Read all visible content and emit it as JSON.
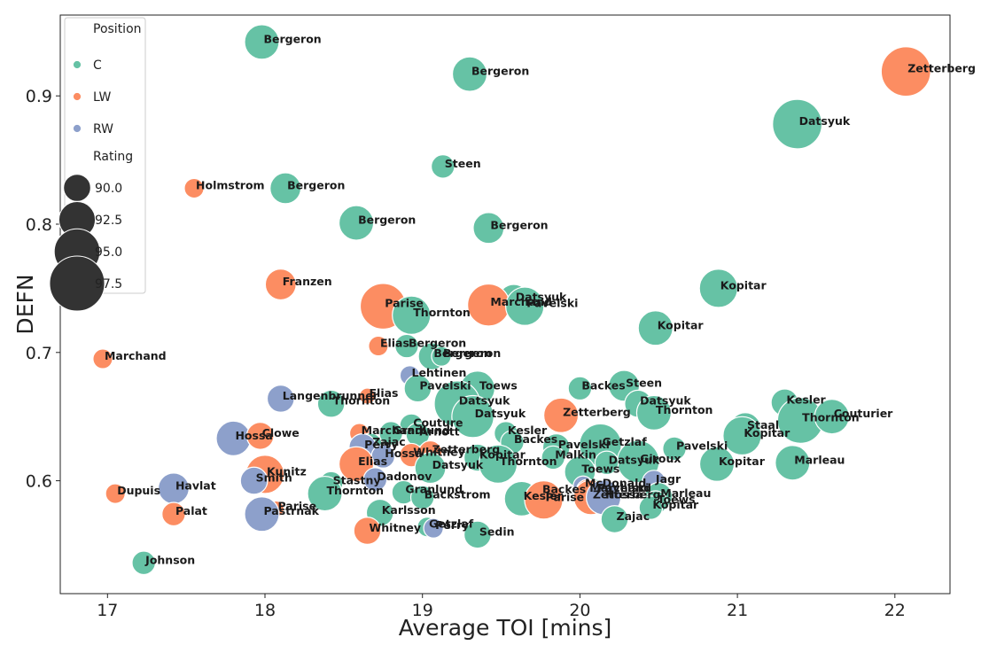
{
  "chart_data": {
    "type": "scatter",
    "xlabel": "Average TOI [mins]",
    "ylabel": "DEFN",
    "xlim": [
      16.7,
      22.35
    ],
    "ylim": [
      0.512,
      0.963
    ],
    "x_ticks": [
      17,
      18,
      19,
      20,
      21,
      22
    ],
    "y_ticks": [
      0.6,
      0.7,
      0.8,
      0.9
    ],
    "grid": false,
    "legend": {
      "placement": "top-left",
      "hue_title": "Position",
      "size_title": "Rating",
      "hue_entries": [
        {
          "label": "C",
          "color": "#66c2a5"
        },
        {
          "label": "LW",
          "color": "#fc8d62"
        },
        {
          "label": "RW",
          "color": "#8da0cb"
        }
      ],
      "size_entries": [
        {
          "label": "90.0",
          "value": 90.0
        },
        {
          "label": "92.5",
          "value": 92.5
        },
        {
          "label": "95.0",
          "value": 95.0
        },
        {
          "label": "97.5",
          "value": 97.5
        }
      ]
    },
    "colors": {
      "C": "#66c2a5",
      "LW": "#fc8d62",
      "RW": "#8da0cb"
    },
    "points": [
      {
        "name": "Bergeron",
        "pos": "C",
        "x": 17.98,
        "y": 0.942,
        "rating": 92.0
      },
      {
        "name": "Bergeron",
        "pos": "C",
        "x": 19.3,
        "y": 0.917,
        "rating": 92.0
      },
      {
        "name": "Zetterberg",
        "pos": "LW",
        "x": 22.07,
        "y": 0.919,
        "rating": 96.0
      },
      {
        "name": "Datsyuk",
        "pos": "C",
        "x": 21.38,
        "y": 0.878,
        "rating": 96.0
      },
      {
        "name": "Steen",
        "pos": "C",
        "x": 19.13,
        "y": 0.845,
        "rating": 89.0
      },
      {
        "name": "Holmstrom",
        "pos": "LW",
        "x": 17.55,
        "y": 0.828,
        "rating": 88.0
      },
      {
        "name": "Bergeron",
        "pos": "C",
        "x": 18.13,
        "y": 0.828,
        "rating": 91.0
      },
      {
        "name": "Bergeron",
        "pos": "C",
        "x": 18.58,
        "y": 0.801,
        "rating": 92.0
      },
      {
        "name": "Bergeron",
        "pos": "C",
        "x": 19.42,
        "y": 0.797,
        "rating": 91.0
      },
      {
        "name": "Franzen",
        "pos": "LW",
        "x": 18.1,
        "y": 0.753,
        "rating": 91.0
      },
      {
        "name": "Kopitar",
        "pos": "C",
        "x": 20.88,
        "y": 0.75,
        "rating": 93.0
      },
      {
        "name": "Datsyuk",
        "pos": "C",
        "x": 19.58,
        "y": 0.741,
        "rating": 91.0
      },
      {
        "name": "Marchand",
        "pos": "LW",
        "x": 19.42,
        "y": 0.737,
        "rating": 94.0
      },
      {
        "name": "Pavelski",
        "pos": "C",
        "x": 19.65,
        "y": 0.736,
        "rating": 93.0
      },
      {
        "name": "Parise",
        "pos": "LW",
        "x": 18.75,
        "y": 0.736,
        "rating": 95.0
      },
      {
        "name": "Thornton",
        "pos": "C",
        "x": 18.93,
        "y": 0.729,
        "rating": 93.0
      },
      {
        "name": "Kopitar",
        "pos": "C",
        "x": 20.48,
        "y": 0.719,
        "rating": 92.0
      },
      {
        "name": "Elias",
        "pos": "LW",
        "x": 18.72,
        "y": 0.705,
        "rating": 88.0
      },
      {
        "name": "Bergeron",
        "pos": "C",
        "x": 18.9,
        "y": 0.705,
        "rating": 89.0
      },
      {
        "name": "Bergeron",
        "pos": "C",
        "x": 19.06,
        "y": 0.697,
        "rating": 90.0
      },
      {
        "name": "Bergeron",
        "pos": "C",
        "x": 19.12,
        "y": 0.697,
        "rating": 88.0
      },
      {
        "name": "Marchand",
        "pos": "LW",
        "x": 16.97,
        "y": 0.695,
        "rating": 88.0
      },
      {
        "name": "Lehtinen",
        "pos": "RW",
        "x": 18.92,
        "y": 0.682,
        "rating": 88.0
      },
      {
        "name": "Pavelski",
        "pos": "C",
        "x": 18.97,
        "y": 0.672,
        "rating": 90.0
      },
      {
        "name": "Toews",
        "pos": "C",
        "x": 19.35,
        "y": 0.672,
        "rating": 92.0
      },
      {
        "name": "Backes",
        "pos": "C",
        "x": 20.0,
        "y": 0.672,
        "rating": 89.0
      },
      {
        "name": "Steen",
        "pos": "C",
        "x": 20.28,
        "y": 0.674,
        "rating": 91.0
      },
      {
        "name": "Elias",
        "pos": "LW",
        "x": 18.65,
        "y": 0.666,
        "rating": 87.0
      },
      {
        "name": "Langenbrunner",
        "pos": "RW",
        "x": 18.1,
        "y": 0.664,
        "rating": 90.0
      },
      {
        "name": "Thornton",
        "pos": "C",
        "x": 18.42,
        "y": 0.66,
        "rating": 90.0
      },
      {
        "name": "Datsyuk",
        "pos": "C",
        "x": 19.22,
        "y": 0.66,
        "rating": 95.0
      },
      {
        "name": "Datsyuk",
        "pos": "C",
        "x": 19.32,
        "y": 0.65,
        "rating": 94.0
      },
      {
        "name": "Zetterberg",
        "pos": "LW",
        "x": 19.88,
        "y": 0.651,
        "rating": 92.0
      },
      {
        "name": "Datsyuk",
        "pos": "C",
        "x": 20.37,
        "y": 0.66,
        "rating": 90.0
      },
      {
        "name": "Thornton",
        "pos": "C",
        "x": 20.47,
        "y": 0.653,
        "rating": 92.0
      },
      {
        "name": "Kesler",
        "pos": "C",
        "x": 21.3,
        "y": 0.661,
        "rating": 90.0
      },
      {
        "name": "Thornton",
        "pos": "C",
        "x": 21.4,
        "y": 0.647,
        "rating": 95.0
      },
      {
        "name": "Couturier",
        "pos": "C",
        "x": 21.6,
        "y": 0.65,
        "rating": 92.0
      },
      {
        "name": "Staal",
        "pos": "C",
        "x": 21.05,
        "y": 0.641,
        "rating": 91.0
      },
      {
        "name": "Kopitar",
        "pos": "C",
        "x": 21.03,
        "y": 0.635,
        "rating": 93.0
      },
      {
        "name": "Couture",
        "pos": "C",
        "x": 18.93,
        "y": 0.643,
        "rating": 89.0
      },
      {
        "name": "Granlund",
        "pos": "C",
        "x": 18.8,
        "y": 0.637,
        "rating": 89.0
      },
      {
        "name": "Arnott",
        "pos": "C",
        "x": 18.97,
        "y": 0.636,
        "rating": 89.0
      },
      {
        "name": "Marchand",
        "pos": "LW",
        "x": 18.6,
        "y": 0.637,
        "rating": 88.0
      },
      {
        "name": "Hossa",
        "pos": "RW",
        "x": 17.8,
        "y": 0.633,
        "rating": 92.0
      },
      {
        "name": "Clowe",
        "pos": "LW",
        "x": 17.97,
        "y": 0.635,
        "rating": 90.0
      },
      {
        "name": "Zajac",
        "pos": "C",
        "x": 18.67,
        "y": 0.628,
        "rating": 89.0
      },
      {
        "name": "Perry",
        "pos": "RW",
        "x": 18.62,
        "y": 0.626,
        "rating": 90.0
      },
      {
        "name": "Kesler",
        "pos": "C",
        "x": 19.53,
        "y": 0.637,
        "rating": 89.0
      },
      {
        "name": "Backes",
        "pos": "C",
        "x": 19.57,
        "y": 0.63,
        "rating": 89.0
      },
      {
        "name": "Pavelski",
        "pos": "C",
        "x": 19.85,
        "y": 0.626,
        "rating": 90.0
      },
      {
        "name": "Getzlaf",
        "pos": "C",
        "x": 20.13,
        "y": 0.628,
        "rating": 94.0
      },
      {
        "name": "Pavelski",
        "pos": "C",
        "x": 20.6,
        "y": 0.625,
        "rating": 89.0
      },
      {
        "name": "Hossa",
        "pos": "RW",
        "x": 18.75,
        "y": 0.619,
        "rating": 89.0
      },
      {
        "name": "Whitney",
        "pos": "LW",
        "x": 18.93,
        "y": 0.62,
        "rating": 89.0
      },
      {
        "name": "Zetterberg",
        "pos": "LW",
        "x": 19.05,
        "y": 0.622,
        "rating": 89.0
      },
      {
        "name": "Kopitar",
        "pos": "C",
        "x": 19.35,
        "y": 0.618,
        "rating": 90.0
      },
      {
        "name": "Thornton",
        "pos": "C",
        "x": 19.48,
        "y": 0.613,
        "rating": 93.0
      },
      {
        "name": "Malkin",
        "pos": "C",
        "x": 19.83,
        "y": 0.618,
        "rating": 89.0
      },
      {
        "name": "Elias",
        "pos": "LW",
        "x": 18.58,
        "y": 0.613,
        "rating": 92.0
      },
      {
        "name": "Datsyuk",
        "pos": "C",
        "x": 19.05,
        "y": 0.61,
        "rating": 91.0
      },
      {
        "name": "Giroux",
        "pos": "C",
        "x": 20.37,
        "y": 0.615,
        "rating": 94.0
      },
      {
        "name": "Datsyuk",
        "pos": "C",
        "x": 20.17,
        "y": 0.614,
        "rating": 89.0
      },
      {
        "name": "Toews",
        "pos": "C",
        "x": 20.0,
        "y": 0.607,
        "rating": 91.0
      },
      {
        "name": "Kopitar",
        "pos": "C",
        "x": 20.87,
        "y": 0.613,
        "rating": 92.0
      },
      {
        "name": "Marleau",
        "pos": "C",
        "x": 21.35,
        "y": 0.614,
        "rating": 92.0
      },
      {
        "name": "Kunitz",
        "pos": "LW",
        "x": 18.0,
        "y": 0.605,
        "rating": 93.0
      },
      {
        "name": "Smith",
        "pos": "RW",
        "x": 17.93,
        "y": 0.6,
        "rating": 90.0
      },
      {
        "name": "Dadonov",
        "pos": "RW",
        "x": 18.7,
        "y": 0.601,
        "rating": 89.0
      },
      {
        "name": "Stastny",
        "pos": "C",
        "x": 18.42,
        "y": 0.598,
        "rating": 89.0
      },
      {
        "name": "Thornton",
        "pos": "C",
        "x": 18.38,
        "y": 0.59,
        "rating": 92.0
      },
      {
        "name": "Dupuis",
        "pos": "LW",
        "x": 17.05,
        "y": 0.59,
        "rating": 88.0
      },
      {
        "name": "Havlat",
        "pos": "RW",
        "x": 17.42,
        "y": 0.594,
        "rating": 91.0
      },
      {
        "name": "Granlund",
        "pos": "C",
        "x": 18.88,
        "y": 0.591,
        "rating": 89.0
      },
      {
        "name": "Backstrom",
        "pos": "C",
        "x": 19.0,
        "y": 0.587,
        "rating": 89.0
      },
      {
        "name": "Kesler",
        "pos": "C",
        "x": 19.63,
        "y": 0.586,
        "rating": 92.0
      },
      {
        "name": "Backes",
        "pos": "C",
        "x": 19.75,
        "y": 0.591,
        "rating": 89.0
      },
      {
        "name": "Parise",
        "pos": "LW",
        "x": 19.77,
        "y": 0.585,
        "rating": 93.0
      },
      {
        "name": "McDonald",
        "pos": "RW",
        "x": 20.02,
        "y": 0.596,
        "rating": 88.0
      },
      {
        "name": "Marchand",
        "pos": "LW",
        "x": 20.05,
        "y": 0.592,
        "rating": 89.0
      },
      {
        "name": "Pavelski",
        "pos": "C",
        "x": 20.1,
        "y": 0.592,
        "rating": 89.0
      },
      {
        "name": "Zetterberg",
        "pos": "LW",
        "x": 20.07,
        "y": 0.587,
        "rating": 92.0
      },
      {
        "name": "Hossa",
        "pos": "RW",
        "x": 20.15,
        "y": 0.587,
        "rating": 92.0
      },
      {
        "name": "Jagr",
        "pos": "RW",
        "x": 20.47,
        "y": 0.599,
        "rating": 89.0
      },
      {
        "name": "Marleau",
        "pos": "C",
        "x": 20.5,
        "y": 0.588,
        "rating": 90.0
      },
      {
        "name": "Toews",
        "pos": "C",
        "x": 20.48,
        "y": 0.583,
        "rating": 89.0
      },
      {
        "name": "Kopitar",
        "pos": "C",
        "x": 20.45,
        "y": 0.579,
        "rating": 89.0
      },
      {
        "name": "Parise",
        "pos": "LW",
        "x": 18.07,
        "y": 0.578,
        "rating": 87.0
      },
      {
        "name": "Pastrnak",
        "pos": "RW",
        "x": 17.98,
        "y": 0.574,
        "rating": 92.0
      },
      {
        "name": "Palat",
        "pos": "LW",
        "x": 17.42,
        "y": 0.574,
        "rating": 89.0
      },
      {
        "name": "Karlsson",
        "pos": "C",
        "x": 18.73,
        "y": 0.575,
        "rating": 90.0
      },
      {
        "name": "Zajac",
        "pos": "C",
        "x": 20.22,
        "y": 0.57,
        "rating": 90.0
      },
      {
        "name": "Getzlaf",
        "pos": "C",
        "x": 19.03,
        "y": 0.564,
        "rating": 88.0
      },
      {
        "name": "Perry",
        "pos": "RW",
        "x": 19.07,
        "y": 0.563,
        "rating": 88.0
      },
      {
        "name": "Whitney",
        "pos": "LW",
        "x": 18.65,
        "y": 0.561,
        "rating": 90.0
      },
      {
        "name": "Sedin",
        "pos": "C",
        "x": 19.35,
        "y": 0.558,
        "rating": 90.0
      },
      {
        "name": "Johnson",
        "pos": "C",
        "x": 17.23,
        "y": 0.536,
        "rating": 89.0
      }
    ]
  }
}
